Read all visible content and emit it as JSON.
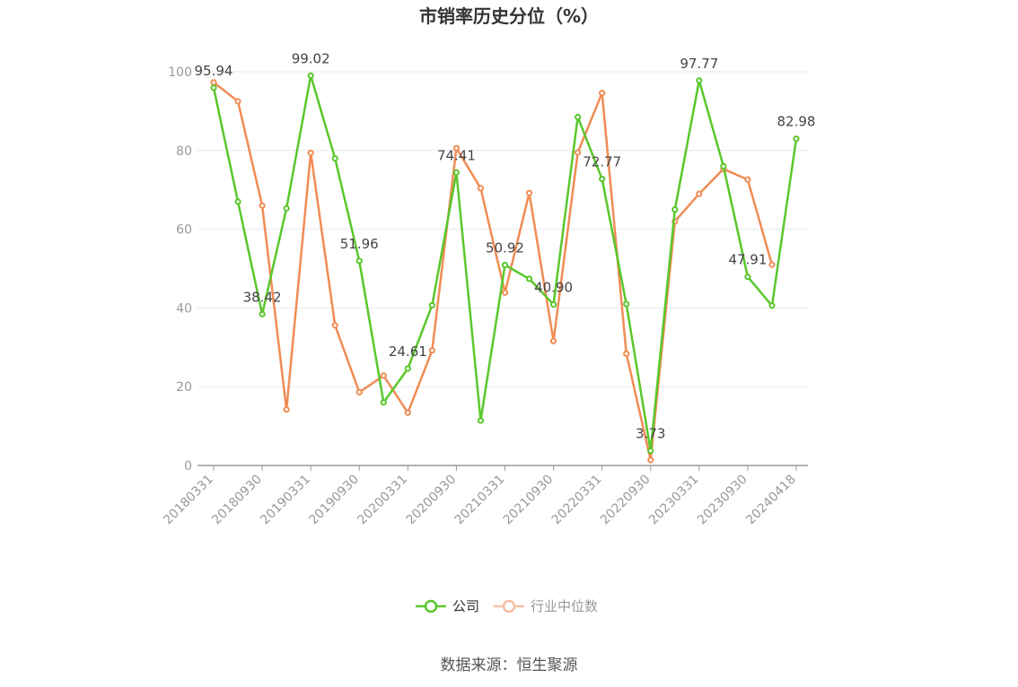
{
  "chart_data": {
    "type": "line",
    "title": "市销率历史分位（%）",
    "xlabel": "",
    "ylabel": "",
    "ylim": [
      0,
      100
    ],
    "yticks": [
      0,
      20,
      40,
      60,
      80,
      100
    ],
    "grid": true,
    "legend_position": "bottom",
    "x": [
      "20180331",
      "20180630",
      "20180930",
      "20181231",
      "20190331",
      "20190630",
      "20190930",
      "20191231",
      "20200331",
      "20200630",
      "20200930",
      "20201231",
      "20210331",
      "20210630",
      "20210930",
      "20211231",
      "20220331",
      "20220630",
      "20220930",
      "20221231",
      "20230331",
      "20230630",
      "20230930",
      "20231231",
      "20240418"
    ],
    "x_tick_labels": [
      "20180331",
      "20180930",
      "20190331",
      "20190930",
      "20200331",
      "20200930",
      "20210331",
      "20210930",
      "20220331",
      "20220930",
      "20230331",
      "20230930",
      "20240418"
    ],
    "series": [
      {
        "name": "公司",
        "color": "#5ac72c",
        "values": [
          95.94,
          67.0,
          38.42,
          65.3,
          99.02,
          78.0,
          51.96,
          16.0,
          24.61,
          40.7,
          74.41,
          11.4,
          50.92,
          47.4,
          40.9,
          88.5,
          72.77,
          41.0,
          3.73,
          65.0,
          97.77,
          76.0,
          47.91,
          40.6,
          82.98
        ],
        "labels": [
          "95.94",
          "",
          "38.42",
          "",
          "99.02",
          "",
          "51.96",
          "",
          "24.61",
          "",
          "74.41",
          "",
          "50.92",
          "",
          "40.90",
          "",
          "72.77",
          "",
          "3.73",
          "",
          "97.77",
          "",
          "47.91",
          "",
          "82.98"
        ]
      },
      {
        "name": "行业中位数",
        "color": "#f08c55",
        "legend_color": "#f7bfa4",
        "values": [
          97.3,
          92.5,
          66.0,
          14.2,
          79.4,
          35.6,
          18.6,
          22.8,
          13.4,
          29.2,
          80.6,
          70.4,
          43.9,
          69.2,
          31.6,
          79.5,
          94.6,
          28.4,
          1.4,
          62.0,
          69.0,
          75.3,
          72.6,
          51.0,
          null
        ]
      }
    ]
  },
  "source": "数据来源：恒生聚源"
}
